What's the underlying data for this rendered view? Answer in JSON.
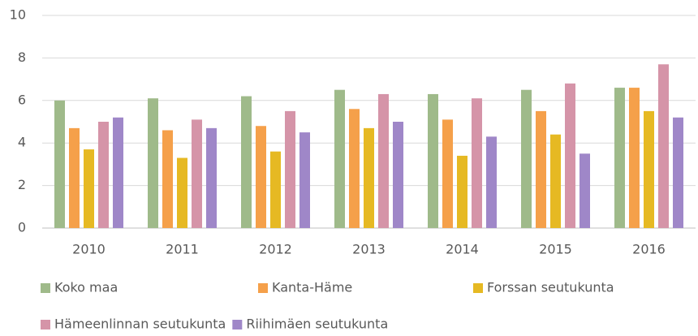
{
  "chart_data": {
    "type": "bar",
    "categories": [
      "2010",
      "2011",
      "2012",
      "2013",
      "2014",
      "2015",
      "2016"
    ],
    "series": [
      {
        "name": "Koko maa",
        "color": "#9fba8a",
        "values": [
          6.0,
          6.1,
          6.2,
          6.5,
          6.3,
          6.5,
          6.6
        ]
      },
      {
        "name": "Kanta-Häme",
        "color": "#f5a04a",
        "values": [
          4.7,
          4.6,
          4.8,
          5.6,
          5.1,
          5.5,
          6.6
        ]
      },
      {
        "name": "Forssan seutukunta",
        "color": "#e6b923",
        "values": [
          3.7,
          3.3,
          3.6,
          4.7,
          3.4,
          4.4,
          5.5
        ]
      },
      {
        "name": "Hämeenlinnan seutukunta",
        "color": "#d594a8",
        "values": [
          5.0,
          5.1,
          5.5,
          6.3,
          6.1,
          6.8,
          7.7
        ]
      },
      {
        "name": "Riihimäen seutukunta",
        "color": "#9f87c8",
        "values": [
          5.2,
          4.7,
          4.5,
          5.0,
          4.3,
          3.5,
          5.2
        ]
      }
    ],
    "ylim": [
      0,
      10
    ],
    "yticks": [
      0,
      2,
      4,
      6,
      8,
      10
    ],
    "grid": true,
    "legend": "bottom"
  }
}
